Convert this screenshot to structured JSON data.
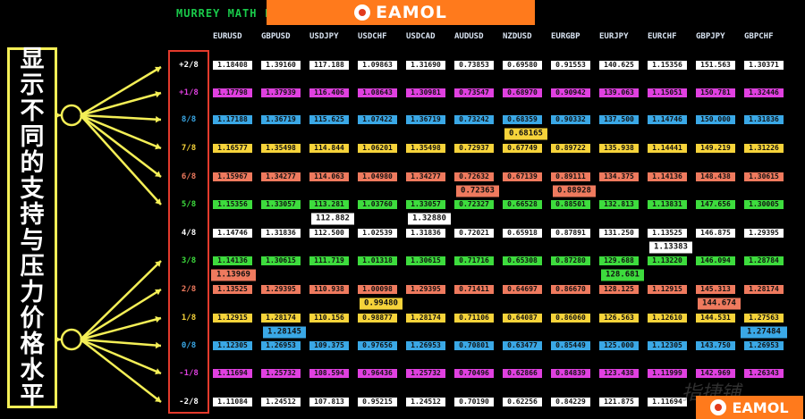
{
  "title": "MURREY MATH L",
  "brand": {
    "name": "EAMOL"
  },
  "side_label": [
    "显",
    "示",
    "不",
    "同",
    "的",
    "支",
    "持",
    "与",
    "压",
    "力",
    "价",
    "格",
    "水",
    "平"
  ],
  "watermark": "指捷铺",
  "colors": {
    "row_colors": [
      "#ffffff",
      "#e040e0",
      "#3aa8e6",
      "#f6d33a",
      "#ef7a5e",
      "#3ddc3d",
      "#ffffff",
      "#3ddc3d",
      "#ef7a5e",
      "#f6d33a",
      "#3aa8e6",
      "#e040e0",
      "#ffffff"
    ],
    "level_text": [
      "#ffffff",
      "#e040e0",
      "#3aa8e6",
      "#f6d33a",
      "#ef7a5e",
      "#3ddc3d",
      "#ffffff",
      "#3ddc3d",
      "#ef7a5e",
      "#f6d33a",
      "#3aa8e6",
      "#e040e0",
      "#ffffff"
    ],
    "marker_colors": {
      "USDJPY": "#ffffff",
      "USDCHF": "#f6d33a",
      "USDCAD": "#ffffff",
      "AUDUSD": "#ef7a5e",
      "NZDUSD": "#f6d33a",
      "EURGBP": "#ef7a5e",
      "EURJPY": "#3ddc3d",
      "EURCHF": "#ffffff",
      "GBPJPY": "#ef7a5e",
      "GBPUSD": "#3aa8e6",
      "EURUSD": "#ef7a5e",
      "GBPCHF": "#3aa8e6"
    }
  },
  "levels": [
    "+2/8",
    "+1/8",
    "8/8",
    "7/8",
    "6/8",
    "5/8",
    "4/8",
    "3/8",
    "2/8",
    "1/8",
    "0/8",
    "-1/8",
    "-2/8"
  ],
  "pairs": [
    "EURUSD",
    "GBPUSD",
    "USDJPY",
    "USDCHF",
    "USDCAD",
    "AUDUSD",
    "NZDUSD",
    "EURGBP",
    "EURJPY",
    "EURCHF",
    "GBPJPY",
    "GBPCHF"
  ],
  "table": [
    [
      "1.18408",
      "1.39160",
      "117.188",
      "1.09863",
      "1.31690",
      "0.73853",
      "0.69580",
      "0.91553",
      "140.625",
      "1.15356",
      "151.563",
      "1.30371"
    ],
    [
      "1.17798",
      "1.37939",
      "116.406",
      "1.08643",
      "1.30981",
      "0.73547",
      "0.68970",
      "0.90942",
      "139.063",
      "1.15051",
      "150.781",
      "1.32446"
    ],
    [
      "1.17188",
      "1.36719",
      "115.625",
      "1.07422",
      "1.36719",
      "0.73242",
      "0.68359",
      "0.90332",
      "137.500",
      "1.14746",
      "150.000",
      "1.31836"
    ],
    [
      "1.16577",
      "1.35498",
      "114.844",
      "1.06201",
      "1.35498",
      "0.72937",
      "0.67749",
      "0.89722",
      "135.938",
      "1.14441",
      "149.219",
      "1.31226"
    ],
    [
      "1.15967",
      "1.34277",
      "114.063",
      "1.04980",
      "1.34277",
      "0.72632",
      "0.67139",
      "0.89111",
      "134.375",
      "1.14136",
      "148.438",
      "1.30615"
    ],
    [
      "1.15356",
      "1.33057",
      "113.281",
      "1.03760",
      "1.33057",
      "0.72327",
      "0.66528",
      "0.88501",
      "132.813",
      "1.13831",
      "147.656",
      "1.30005"
    ],
    [
      "1.14746",
      "1.31836",
      "112.500",
      "1.02539",
      "1.31836",
      "0.72021",
      "0.65918",
      "0.87891",
      "131.250",
      "1.13525",
      "146.875",
      "1.29395"
    ],
    [
      "1.14136",
      "1.30615",
      "111.719",
      "1.01318",
      "1.30615",
      "0.71716",
      "0.65308",
      "0.87280",
      "129.688",
      "1.13220",
      "146.094",
      "1.28784"
    ],
    [
      "1.13525",
      "1.29395",
      "110.938",
      "1.00098",
      "1.29395",
      "0.71411",
      "0.64697",
      "0.86670",
      "128.125",
      "1.12915",
      "145.313",
      "1.28174"
    ],
    [
      "1.12915",
      "1.28174",
      "110.156",
      "0.98877",
      "1.28174",
      "0.71106",
      "0.64087",
      "0.86060",
      "126.563",
      "1.12610",
      "144.531",
      "1.27563"
    ],
    [
      "1.12305",
      "1.26953",
      "109.375",
      "0.97656",
      "1.26953",
      "0.70801",
      "0.63477",
      "0.85449",
      "125.000",
      "1.12305",
      "143.750",
      "1.26953"
    ],
    [
      "1.11694",
      "1.25732",
      "108.594",
      "0.96436",
      "1.25732",
      "0.70496",
      "0.62866",
      "0.84839",
      "123.438",
      "1.11999",
      "142.969",
      "1.26343"
    ],
    [
      "1.11084",
      "1.24512",
      "107.813",
      "0.95215",
      "1.24512",
      "0.70190",
      "0.62256",
      "0.84229",
      "121.875",
      "1.11694",
      "142.188",
      "1.25732"
    ]
  ],
  "markers": [
    {
      "pair": "EURUSD",
      "value": "1.13969",
      "between": [
        7,
        8
      ]
    },
    {
      "pair": "GBPUSD",
      "value": "1.28145",
      "between": [
        9,
        10
      ]
    },
    {
      "pair": "USDJPY",
      "value": "112.882",
      "between": [
        5,
        6
      ]
    },
    {
      "pair": "USDCHF",
      "value": "0.99480",
      "between": [
        8,
        9
      ]
    },
    {
      "pair": "USDCAD",
      "value": "1.32880",
      "between": [
        5,
        6
      ]
    },
    {
      "pair": "AUDUSD",
      "value": "0.72363",
      "between": [
        4,
        5
      ]
    },
    {
      "pair": "NZDUSD",
      "value": "0.68165",
      "between": [
        2,
        3
      ]
    },
    {
      "pair": "EURGBP",
      "value": "0.88928",
      "between": [
        4,
        5
      ]
    },
    {
      "pair": "EURJPY",
      "value": "128.681",
      "between": [
        7,
        8
      ]
    },
    {
      "pair": "EURCHF",
      "value": "1.13383",
      "between": [
        6,
        7
      ]
    },
    {
      "pair": "GBPJPY",
      "value": "144.674",
      "between": [
        8,
        9
      ]
    },
    {
      "pair": "GBPCHF",
      "value": "1.27484",
      "between": [
        9,
        10
      ]
    }
  ]
}
